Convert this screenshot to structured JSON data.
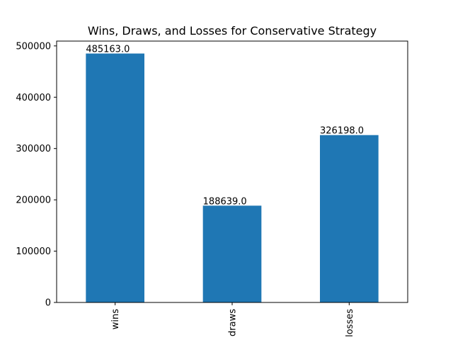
{
  "chart_data": {
    "type": "bar",
    "title": "Wins, Draws, and Losses for Conservative Strategy",
    "categories": [
      "wins",
      "draws",
      "losses"
    ],
    "values": [
      485163.0,
      188639.0,
      326198.0
    ],
    "data_labels": [
      "485163.0",
      "188639.0",
      "326198.0"
    ],
    "bar_color": "#1f77b4",
    "xlabel": "",
    "ylabel": "",
    "ylim": [
      0,
      509409
    ],
    "yticks": [
      0,
      100000,
      200000,
      300000,
      400000,
      500000
    ],
    "ytick_labels": [
      "0",
      "100000",
      "200000",
      "300000",
      "400000",
      "500000"
    ],
    "grid": false,
    "legend": "none"
  }
}
